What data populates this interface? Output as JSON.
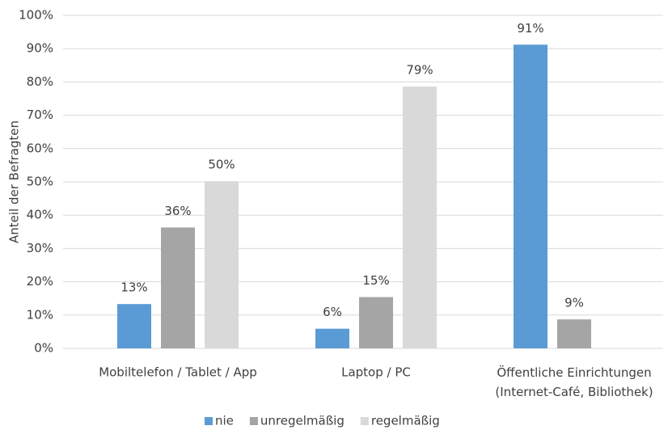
{
  "chart_data": {
    "type": "bar",
    "ylabel": "Anteil der Befragten",
    "categories": [
      "Mobiltelefon / Tablet / App",
      "Laptop / PC",
      "Öffentliche Einrichtungen\n(Internet-Café, Bibliothek)"
    ],
    "series": [
      {
        "name": "nie",
        "color": "#5b9bd5",
        "values": [
          13.3,
          5.9,
          91.2
        ],
        "value_labels": [
          "13%",
          "6%",
          "91%"
        ]
      },
      {
        "name": "unregelmäßig",
        "color": "#a5a5a5",
        "values": [
          36.3,
          15.4,
          8.7
        ],
        "value_labels": [
          "36%",
          "15%",
          "9%"
        ]
      },
      {
        "name": "regelmäßig",
        "color": "#d9d9d9",
        "values": [
          50.2,
          78.6,
          null
        ],
        "value_labels": [
          "50%",
          "79%",
          null
        ]
      }
    ],
    "ylim": [
      0,
      100
    ],
    "yticks": [
      {
        "value": 0,
        "label": "0%"
      },
      {
        "value": 10,
        "label": "10%"
      },
      {
        "value": 20,
        "label": "20%"
      },
      {
        "value": 30,
        "label": "30%"
      },
      {
        "value": 40,
        "label": "40%"
      },
      {
        "value": 50,
        "label": "50%"
      },
      {
        "value": 60,
        "label": "60%"
      },
      {
        "value": 70,
        "label": "70%"
      },
      {
        "value": 80,
        "label": "80%"
      },
      {
        "value": 90,
        "label": "90%"
      },
      {
        "value": 100,
        "label": "100%"
      }
    ],
    "grid": true,
    "legend": "bottom"
  }
}
